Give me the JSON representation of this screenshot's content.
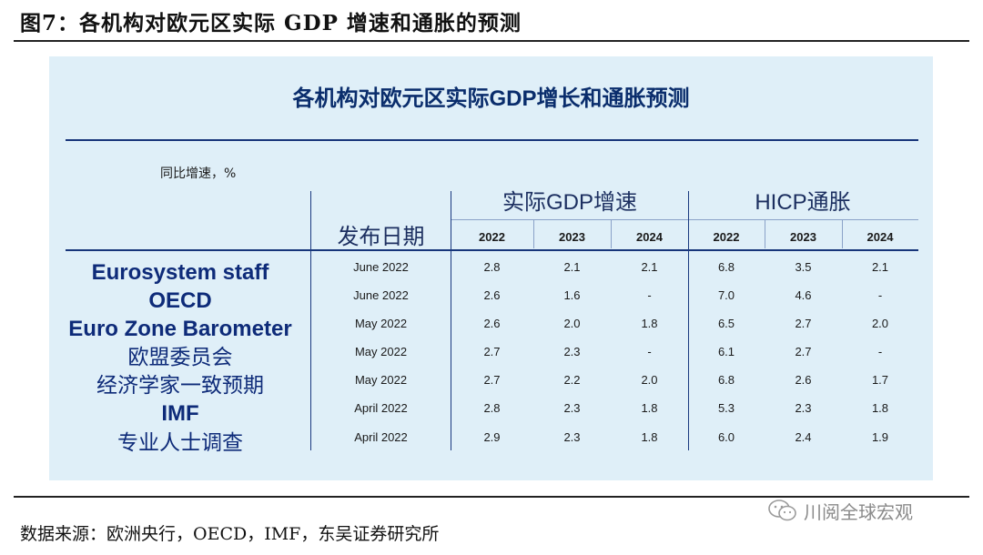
{
  "figure_title": "图7：各机构对欧元区实际 GDP 增速和通胀的预测",
  "panel_title": "各机构对欧元区实际GDP增长和通胀预测",
  "unit_label": "同比增速，%",
  "header": {
    "date": "发布日期",
    "gdp_group": "实际GDP增速",
    "hicp_group": "HICP通胀",
    "gdp_years": [
      "2022",
      "2023",
      "2024"
    ],
    "hicp_years": [
      "2022",
      "2023",
      "2024"
    ]
  },
  "rows": [
    {
      "org": "Eurosystem staff",
      "date": "June 2022",
      "gdp": [
        "2.8",
        "2.1",
        "2.1"
      ],
      "hicp": [
        "6.8",
        "3.5",
        "2.1"
      ]
    },
    {
      "org": "OECD",
      "date": "June 2022",
      "gdp": [
        "2.6",
        "1.6",
        "-"
      ],
      "hicp": [
        "7.0",
        "4.6",
        "-"
      ]
    },
    {
      "org": "Euro Zone Barometer",
      "date": "May 2022",
      "gdp": [
        "2.6",
        "2.0",
        "1.8"
      ],
      "hicp": [
        "6.5",
        "2.7",
        "2.0"
      ]
    },
    {
      "org": "欧盟委员会",
      "date": "May 2022",
      "gdp": [
        "2.7",
        "2.3",
        "-"
      ],
      "hicp": [
        "6.1",
        "2.7",
        "-"
      ]
    },
    {
      "org": "经济学家一致预期",
      "date": "May 2022",
      "gdp": [
        "2.7",
        "2.2",
        "2.0"
      ],
      "hicp": [
        "6.8",
        "2.6",
        "1.7"
      ]
    },
    {
      "org": "IMF",
      "date": "April 2022",
      "gdp": [
        "2.8",
        "2.3",
        "1.8"
      ],
      "hicp": [
        "5.3",
        "2.3",
        "1.8"
      ]
    },
    {
      "org": "专业人士调查",
      "date": "April 2022",
      "gdp": [
        "2.9",
        "2.3",
        "1.8"
      ],
      "hicp": [
        "6.0",
        "2.4",
        "1.9"
      ]
    }
  ],
  "source": "数据来源：欧洲央行，OECD，IMF，东吴证券研究所",
  "watermark": "川阅全球宏观",
  "colors": {
    "panel_bg": "#dfeff8",
    "rule": "#17357a",
    "org_text": "#0e2b79"
  }
}
